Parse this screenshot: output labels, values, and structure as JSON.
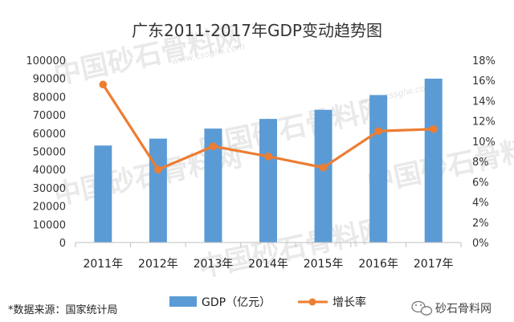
{
  "chart_data": {
    "type": "bar",
    "title": "广东2011-2017年GDP变动趋势图",
    "categories": [
      "2011年",
      "2012年",
      "2013年",
      "2014年",
      "2015年",
      "2016年",
      "2017年"
    ],
    "series": [
      {
        "name": "GDP（亿元）",
        "type": "bar",
        "axis": "left",
        "color": "#5b9bd5",
        "values": [
          53200,
          57000,
          62500,
          67800,
          72800,
          80900,
          89900
        ]
      },
      {
        "name": "增长率",
        "type": "line",
        "axis": "right",
        "color": "#ed7d31",
        "values": [
          15.6,
          7.2,
          9.5,
          8.5,
          7.4,
          11.0,
          11.2
        ]
      }
    ],
    "y_left": {
      "min": 0,
      "max": 100000,
      "step": 10000,
      "ticks": [
        "0",
        "10000",
        "20000",
        "30000",
        "40000",
        "50000",
        "60000",
        "70000",
        "80000",
        "90000",
        "100000"
      ]
    },
    "y_right": {
      "min": 0,
      "max": 18,
      "step": 2,
      "ticks": [
        "0%",
        "2%",
        "4%",
        "6%",
        "8%",
        "10%",
        "12%",
        "14%",
        "16%",
        "18%"
      ]
    },
    "grid": false,
    "legend_position": "bottom"
  },
  "source_note": "*数据来源：国家统计局",
  "brand": {
    "footer_name": "砂石骨料网",
    "watermark_text": "中国砂石骨料网",
    "watermark_url": "www.cssglw.com",
    "icon": "wechat-icon"
  }
}
